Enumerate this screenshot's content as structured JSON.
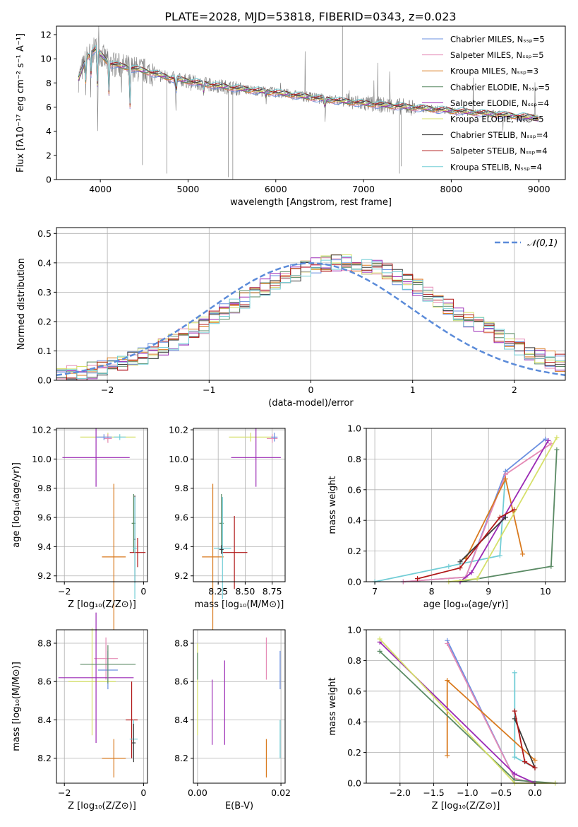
{
  "figure": {
    "title": "PLATE=2028, MJD=53818, FIBERID=0343, z=0.023"
  },
  "series_colors": {
    "Chabrier MILES": "#6a8fe0",
    "Salpeter MILES": "#e58bb6",
    "Kroupa MILES": "#d97a1e",
    "Chabrier ELODIE": "#5a8a64",
    "Salpeter ELODIE": "#9b2ab5",
    "Kroupa ELODIE": "#d6e06a",
    "Chabrier STELIB": "#3a3a3a",
    "Salpeter STELIB": "#b01818",
    "Kroupa STELIB": "#72cdd6",
    "data": "#7f7f7f",
    "normal": "#5b8bd9"
  },
  "chart_data": [
    {
      "id": "spectrum",
      "type": "line",
      "xlabel": "wavelength [Angstrom, rest frame]",
      "ylabel": "Flux [fλ10⁻¹⁷ erg cm⁻² s⁻¹ A⁻¹]",
      "xlim": [
        3500,
        9300
      ],
      "ylim": [
        0,
        12.7
      ],
      "xticks": [
        4000,
        5000,
        6000,
        7000,
        8000,
        9000
      ],
      "yticks": [
        0,
        2,
        4,
        6,
        8,
        10,
        12
      ],
      "legend_position": "upper-right",
      "legend": [
        "Chabrier MILES, Nₛₛₚ=5",
        "Salpeter MILES, Nₛₛₚ=5",
        "Kroupa MILES, Nₛₛₚ=3",
        "Chabrier ELODIE, Nₛₛₚ=5",
        "Salpeter ELODIE, Nₛₛₚ=4",
        "Kroupa ELODIE, Nₛₛₚ=5",
        "Chabrier STELIB, Nₛₛₚ=4",
        "Salpeter STELIB, Nₛₛₚ=4",
        "Kroupa STELIB, Nₛₛₚ=4"
      ],
      "continuum": [
        [
          3750,
          8.3
        ],
        [
          3850,
          10.2
        ],
        [
          3950,
          10.8
        ],
        [
          4100,
          9.6
        ],
        [
          4300,
          9.3
        ],
        [
          4500,
          9.0
        ],
        [
          4800,
          8.4
        ],
        [
          5200,
          7.9
        ],
        [
          5600,
          7.5
        ],
        [
          6000,
          7.2
        ],
        [
          6500,
          6.7
        ],
        [
          7000,
          6.3
        ],
        [
          7500,
          6.0
        ],
        [
          8000,
          5.7
        ],
        [
          8500,
          5.4
        ],
        [
          9000,
          5.1
        ]
      ]
    },
    {
      "id": "residuals",
      "type": "line",
      "xlabel": "(data-model)/error",
      "ylabel": "Normed distribution",
      "xlim": [
        -2.5,
        2.5
      ],
      "ylim": [
        0,
        0.52
      ],
      "xticks": [
        -2,
        -1,
        0,
        1,
        2
      ],
      "yticks": [
        0.0,
        0.1,
        0.2,
        0.3,
        0.4,
        0.5
      ],
      "legend": [
        "𝒩(0,1)"
      ],
      "legend_position": "upper-right",
      "normal_mean": 0,
      "normal_sigma": 1
    },
    {
      "id": "z-age",
      "type": "scatter",
      "xlabel": "Z [log₁₀(Z/Z⊙)]",
      "ylabel": "age  [log₁₀(age/yr)]",
      "xlim": [
        -2.2,
        0.1
      ],
      "ylim": [
        9.16,
        10.21
      ],
      "xticks": [
        -2,
        0
      ],
      "yticks": [
        9.2,
        9.4,
        9.6,
        9.8,
        10.0,
        10.2
      ]
    },
    {
      "id": "mass-age",
      "type": "scatter",
      "xlabel": "mass [log₁₀(M/M⊙)]",
      "ylabel": "",
      "xlim": [
        8.02,
        8.87
      ],
      "ylim": [
        9.16,
        10.21
      ],
      "xticks": [
        8.25,
        8.5,
        8.75
      ],
      "yticks": [
        9.2,
        9.4,
        9.6,
        9.8,
        10.0,
        10.2
      ]
    },
    {
      "id": "age-weight",
      "type": "line",
      "xlabel": "age  [log₁₀(age/yr)]",
      "ylabel": "mass weight",
      "xlim": [
        6.85,
        10.35
      ],
      "ylim": [
        0,
        1.0
      ],
      "xticks": [
        7,
        8,
        9,
        10
      ],
      "yticks": [
        0.0,
        0.2,
        0.4,
        0.6,
        0.8,
        1.0
      ]
    },
    {
      "id": "z-mass",
      "type": "scatter",
      "xlabel": "Z [log₁₀(Z/Z⊙)]",
      "ylabel": "mass [log₁₀(M/M⊙)]",
      "xlim": [
        -2.2,
        0.1
      ],
      "ylim": [
        8.07,
        8.87
      ],
      "xticks": [
        -2,
        0
      ],
      "yticks": [
        8.2,
        8.4,
        8.6,
        8.8
      ]
    },
    {
      "id": "ebv-mass",
      "type": "scatter",
      "xlabel": "E(B-V)",
      "ylabel": "",
      "xlim": [
        -0.001,
        0.021
      ],
      "ylim": [
        8.07,
        8.87
      ],
      "xticks": [
        0.0,
        0.02
      ],
      "yticks": [
        8.2,
        8.4,
        8.6,
        8.8
      ]
    },
    {
      "id": "z-weight",
      "type": "line",
      "xlabel": "Z [log₁₀(Z/Z⊙)]",
      "ylabel": "mass weight",
      "xlim": [
        -2.5,
        0.45
      ],
      "ylim": [
        0,
        1.0
      ],
      "xticks": [
        -2.0,
        -1.5,
        -1.0,
        -0.5,
        0.0
      ],
      "yticks": [
        0.0,
        0.2,
        0.4,
        0.6,
        0.8,
        1.0
      ]
    }
  ]
}
